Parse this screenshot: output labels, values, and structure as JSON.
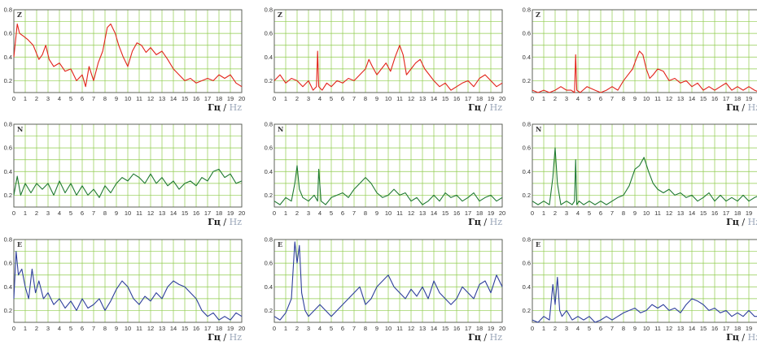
{
  "units": {
    "ru": "Гц",
    "separator": " / ",
    "en": "Hz"
  },
  "colors": {
    "grid": "#8fcc4d",
    "Z": "#e2231a",
    "N": "#1f7a31",
    "E": "#2e3f9c"
  },
  "chart_data": [
    {
      "type": "line",
      "component": "Z",
      "column": 1,
      "xlim": [
        0,
        20
      ],
      "ylim": [
        0.1,
        0.8
      ],
      "xticks": [
        "0",
        "1",
        "2",
        "3",
        "4",
        "5",
        "6",
        "7",
        "8",
        "9",
        "10",
        "11",
        "12",
        "13",
        "14",
        "15",
        "16",
        "17",
        "18",
        "19",
        "20"
      ],
      "yticks": [
        "0.2",
        "0.4",
        "0.6",
        "0.8"
      ],
      "x": [
        0,
        0.3,
        0.5,
        0.8,
        1.2,
        1.7,
        2.2,
        2.5,
        2.8,
        3.1,
        3.5,
        4,
        4.5,
        5,
        5.5,
        6,
        6.3,
        6.6,
        7,
        7.4,
        7.8,
        8,
        8.2,
        8.5,
        8.9,
        9.2,
        9.6,
        10,
        10.4,
        10.8,
        11.2,
        11.6,
        12,
        12.5,
        13,
        13.5,
        14,
        14.5,
        15,
        15.5,
        16,
        16.5,
        17,
        17.5,
        18,
        18.5,
        19,
        19.5,
        20
      ],
      "y": [
        0.4,
        0.68,
        0.6,
        0.58,
        0.55,
        0.5,
        0.38,
        0.42,
        0.5,
        0.38,
        0.32,
        0.35,
        0.28,
        0.3,
        0.2,
        0.25,
        0.15,
        0.32,
        0.2,
        0.35,
        0.45,
        0.55,
        0.65,
        0.68,
        0.6,
        0.5,
        0.4,
        0.32,
        0.45,
        0.52,
        0.5,
        0.44,
        0.48,
        0.42,
        0.45,
        0.38,
        0.3,
        0.25,
        0.2,
        0.22,
        0.18,
        0.2,
        0.22,
        0.2,
        0.25,
        0.22,
        0.25,
        0.18,
        0.15
      ]
    },
    {
      "type": "line",
      "component": "Z",
      "column": 2,
      "xlim": [
        0,
        20
      ],
      "ylim": [
        0.1,
        0.8
      ],
      "xticks": [
        "0",
        "1",
        "2",
        "3",
        "4",
        "5",
        "6",
        "7",
        "8",
        "9",
        "10",
        "11",
        "12",
        "13",
        "14",
        "15",
        "16",
        "17",
        "18",
        "19",
        "20"
      ],
      "yticks": [
        "0.2",
        "0.4",
        "0.6",
        "0.8"
      ],
      "x": [
        0,
        0.5,
        1,
        1.5,
        2,
        2.5,
        3,
        3.4,
        3.7,
        3.8,
        3.9,
        4.2,
        4.6,
        5,
        5.5,
        6,
        6.5,
        7,
        7.5,
        8,
        8.3,
        8.6,
        9,
        9.4,
        9.8,
        10.2,
        10.6,
        11,
        11.3,
        11.6,
        12,
        12.4,
        12.8,
        13.2,
        13.6,
        14,
        14.5,
        15,
        15.5,
        16,
        16.5,
        17,
        17.5,
        18,
        18.5,
        19,
        19.5,
        20
      ],
      "y": [
        0.2,
        0.25,
        0.18,
        0.22,
        0.2,
        0.15,
        0.2,
        0.12,
        0.15,
        0.45,
        0.15,
        0.12,
        0.18,
        0.15,
        0.2,
        0.18,
        0.22,
        0.2,
        0.25,
        0.3,
        0.38,
        0.32,
        0.25,
        0.3,
        0.35,
        0.28,
        0.4,
        0.5,
        0.42,
        0.25,
        0.3,
        0.35,
        0.38,
        0.3,
        0.25,
        0.2,
        0.15,
        0.18,
        0.12,
        0.15,
        0.18,
        0.2,
        0.15,
        0.22,
        0.25,
        0.2,
        0.15,
        0.18
      ]
    },
    {
      "type": "line",
      "component": "Z",
      "column": 3,
      "xlim": [
        0,
        20
      ],
      "ylim": [
        0.1,
        0.8
      ],
      "xticks": [
        "0",
        "1",
        "2",
        "3",
        "4",
        "5",
        "6",
        "7",
        "8",
        "9",
        "10",
        "11",
        "12",
        "13",
        "14",
        "15",
        "16",
        "17",
        "18",
        "19",
        "20"
      ],
      "yticks": [
        "0.2",
        "0.4",
        "0.6",
        "0.8"
      ],
      "x": [
        0,
        0.5,
        1,
        1.5,
        2,
        2.5,
        3,
        3.4,
        3.7,
        3.8,
        3.9,
        4.2,
        4.8,
        5.5,
        6,
        6.5,
        7,
        7.5,
        8,
        8.4,
        8.8,
        9.1,
        9.4,
        9.7,
        10,
        10.3,
        10.6,
        11,
        11.5,
        12,
        12.5,
        13,
        13.5,
        14,
        14.5,
        15,
        15.5,
        16,
        16.5,
        17,
        17.5,
        18,
        18.5,
        19,
        19.5,
        20
      ],
      "y": [
        0.12,
        0.1,
        0.12,
        0.1,
        0.12,
        0.15,
        0.12,
        0.12,
        0.1,
        0.42,
        0.12,
        0.1,
        0.15,
        0.12,
        0.1,
        0.12,
        0.15,
        0.12,
        0.2,
        0.25,
        0.3,
        0.38,
        0.45,
        0.42,
        0.3,
        0.22,
        0.25,
        0.3,
        0.28,
        0.2,
        0.22,
        0.18,
        0.2,
        0.15,
        0.18,
        0.12,
        0.15,
        0.12,
        0.15,
        0.18,
        0.12,
        0.15,
        0.12,
        0.15,
        0.12,
        0.1
      ]
    },
    {
      "type": "line",
      "component": "N",
      "column": 1,
      "xlim": [
        0,
        20
      ],
      "ylim": [
        0.1,
        0.8
      ],
      "xticks": [
        "0",
        "1",
        "2",
        "3",
        "4",
        "5",
        "6",
        "7",
        "8",
        "9",
        "10",
        "11",
        "12",
        "13",
        "14",
        "15",
        "16",
        "17",
        "18",
        "19",
        "20"
      ],
      "yticks": [
        "0.2",
        "0.4",
        "0.6",
        "0.8"
      ],
      "x": [
        0,
        0.3,
        0.6,
        1,
        1.5,
        2,
        2.5,
        3,
        3.5,
        4,
        4.5,
        5,
        5.5,
        6,
        6.5,
        7,
        7.5,
        8,
        8.5,
        9,
        9.5,
        10,
        10.5,
        11,
        11.5,
        12,
        12.5,
        13,
        13.5,
        14,
        14.5,
        15,
        15.5,
        16,
        16.5,
        17,
        17.5,
        18,
        18.5,
        19,
        19.5,
        20
      ],
      "y": [
        0.2,
        0.36,
        0.2,
        0.3,
        0.22,
        0.3,
        0.25,
        0.3,
        0.2,
        0.32,
        0.22,
        0.3,
        0.2,
        0.28,
        0.2,
        0.25,
        0.18,
        0.28,
        0.22,
        0.3,
        0.35,
        0.32,
        0.38,
        0.35,
        0.3,
        0.38,
        0.3,
        0.35,
        0.28,
        0.32,
        0.25,
        0.3,
        0.32,
        0.28,
        0.35,
        0.32,
        0.4,
        0.42,
        0.35,
        0.38,
        0.3,
        0.32
      ]
    },
    {
      "type": "line",
      "component": "N",
      "column": 2,
      "xlim": [
        0,
        20
      ],
      "ylim": [
        0.1,
        0.8
      ],
      "xticks": [
        "0",
        "1",
        "2",
        "3",
        "4",
        "5",
        "6",
        "7",
        "8",
        "9",
        "10",
        "11",
        "12",
        "13",
        "14",
        "15",
        "16",
        "17",
        "18",
        "19",
        "20"
      ],
      "yticks": [
        "0.2",
        "0.4",
        "0.6",
        "0.8"
      ],
      "x": [
        0,
        0.5,
        1,
        1.5,
        1.8,
        2,
        2.2,
        2.5,
        3,
        3.5,
        3.8,
        3.9,
        4.1,
        4.5,
        5,
        5.5,
        6,
        6.5,
        7,
        7.5,
        8,
        8.5,
        9,
        9.5,
        10,
        10.5,
        11,
        11.5,
        12,
        12.5,
        13,
        13.5,
        14,
        14.5,
        15,
        15.5,
        16,
        16.5,
        17,
        17.5,
        18,
        18.5,
        19,
        19.5,
        20
      ],
      "y": [
        0.15,
        0.12,
        0.18,
        0.15,
        0.3,
        0.45,
        0.25,
        0.18,
        0.15,
        0.2,
        0.15,
        0.42,
        0.15,
        0.12,
        0.18,
        0.2,
        0.22,
        0.18,
        0.25,
        0.3,
        0.35,
        0.3,
        0.22,
        0.18,
        0.2,
        0.25,
        0.2,
        0.22,
        0.15,
        0.18,
        0.12,
        0.15,
        0.2,
        0.15,
        0.22,
        0.18,
        0.2,
        0.15,
        0.18,
        0.22,
        0.15,
        0.18,
        0.2,
        0.15,
        0.18
      ]
    },
    {
      "type": "line",
      "component": "N",
      "column": 3,
      "xlim": [
        0,
        20
      ],
      "ylim": [
        0.1,
        0.8
      ],
      "xticks": [
        "0",
        "1",
        "2",
        "3",
        "4",
        "5",
        "6",
        "7",
        "8",
        "9",
        "10",
        "11",
        "12",
        "13",
        "14",
        "15",
        "16",
        "17",
        "18",
        "19",
        "20"
      ],
      "yticks": [
        "0.2",
        "0.4",
        "0.6",
        "0.8"
      ],
      "x": [
        0,
        0.5,
        1,
        1.5,
        1.8,
        2,
        2.2,
        2.5,
        3,
        3.5,
        3.7,
        3.8,
        3.9,
        4.1,
        4.5,
        5,
        5.5,
        6,
        6.5,
        7,
        7.5,
        8,
        8.5,
        9,
        9.4,
        9.8,
        10.2,
        10.6,
        11,
        11.5,
        12,
        12.5,
        13,
        13.5,
        14,
        14.5,
        15,
        15.5,
        16,
        16.5,
        17,
        17.5,
        18,
        18.5,
        19,
        19.5,
        20
      ],
      "y": [
        0.15,
        0.12,
        0.15,
        0.12,
        0.35,
        0.6,
        0.3,
        0.12,
        0.15,
        0.12,
        0.15,
        0.5,
        0.12,
        0.15,
        0.12,
        0.15,
        0.12,
        0.15,
        0.12,
        0.15,
        0.18,
        0.2,
        0.28,
        0.42,
        0.45,
        0.52,
        0.4,
        0.3,
        0.25,
        0.22,
        0.25,
        0.2,
        0.22,
        0.18,
        0.2,
        0.15,
        0.18,
        0.22,
        0.15,
        0.2,
        0.15,
        0.18,
        0.15,
        0.2,
        0.15,
        0.18,
        0.2
      ]
    },
    {
      "type": "line",
      "component": "E",
      "column": 1,
      "xlim": [
        0,
        20
      ],
      "ylim": [
        0.1,
        0.8
      ],
      "xticks": [
        "0",
        "1",
        "2",
        "3",
        "4",
        "5",
        "6",
        "7",
        "8",
        "9",
        "10",
        "11",
        "12",
        "13",
        "14",
        "15",
        "16",
        "17",
        "18",
        "19",
        "20"
      ],
      "yticks": [
        "0.2",
        "0.4",
        "0.6",
        "0.8"
      ],
      "x": [
        0,
        0.2,
        0.4,
        0.7,
        1,
        1.3,
        1.6,
        1.9,
        2.2,
        2.6,
        3,
        3.5,
        4,
        4.5,
        5,
        5.5,
        6,
        6.5,
        7,
        7.5,
        8,
        8.5,
        9,
        9.5,
        10,
        10.5,
        11,
        11.5,
        12,
        12.5,
        13,
        13.5,
        14,
        14.5,
        15,
        15.5,
        16,
        16.5,
        17,
        17.5,
        18,
        18.5,
        19,
        19.5,
        20
      ],
      "y": [
        0.3,
        0.7,
        0.5,
        0.55,
        0.4,
        0.3,
        0.55,
        0.35,
        0.45,
        0.3,
        0.35,
        0.25,
        0.3,
        0.22,
        0.28,
        0.2,
        0.3,
        0.22,
        0.25,
        0.3,
        0.2,
        0.28,
        0.38,
        0.45,
        0.4,
        0.3,
        0.25,
        0.32,
        0.28,
        0.35,
        0.3,
        0.4,
        0.45,
        0.42,
        0.4,
        0.35,
        0.3,
        0.2,
        0.15,
        0.18,
        0.12,
        0.15,
        0.12,
        0.18,
        0.15
      ]
    },
    {
      "type": "line",
      "component": "E",
      "column": 2,
      "xlim": [
        0,
        20
      ],
      "ylim": [
        0.1,
        0.8
      ],
      "xticks": [
        "0",
        "1",
        "2",
        "3",
        "4",
        "5",
        "6",
        "7",
        "8",
        "9",
        "10",
        "11",
        "12",
        "13",
        "14",
        "15",
        "16",
        "17",
        "18",
        "19",
        "20"
      ],
      "yticks": [
        "0.2",
        "0.4",
        "0.6",
        "0.8"
      ],
      "x": [
        0,
        0.5,
        1,
        1.5,
        1.8,
        2,
        2.2,
        2.4,
        2.7,
        3,
        3.5,
        4,
        4.5,
        5,
        5.5,
        6,
        6.5,
        7,
        7.5,
        8,
        8.5,
        9,
        9.5,
        10,
        10.5,
        11,
        11.5,
        12,
        12.5,
        13,
        13.5,
        14,
        14.5,
        15,
        15.5,
        16,
        16.5,
        17,
        17.5,
        18,
        18.5,
        19,
        19.5,
        20
      ],
      "y": [
        0.15,
        0.12,
        0.18,
        0.3,
        0.78,
        0.6,
        0.75,
        0.35,
        0.2,
        0.15,
        0.2,
        0.25,
        0.2,
        0.15,
        0.2,
        0.25,
        0.3,
        0.35,
        0.4,
        0.25,
        0.3,
        0.4,
        0.45,
        0.5,
        0.4,
        0.35,
        0.3,
        0.38,
        0.32,
        0.4,
        0.3,
        0.45,
        0.35,
        0.3,
        0.25,
        0.3,
        0.4,
        0.35,
        0.3,
        0.42,
        0.45,
        0.35,
        0.5,
        0.4
      ]
    },
    {
      "type": "line",
      "component": "E",
      "column": 3,
      "xlim": [
        0,
        20
      ],
      "ylim": [
        0.1,
        0.8
      ],
      "xticks": [
        "0",
        "1",
        "2",
        "3",
        "4",
        "5",
        "6",
        "7",
        "8",
        "9",
        "10",
        "11",
        "12",
        "13",
        "14",
        "15",
        "16",
        "17",
        "18",
        "19",
        "20"
      ],
      "yticks": [
        "0.2",
        "0.4",
        "0.6",
        "0.8"
      ],
      "x": [
        0,
        0.5,
        1,
        1.5,
        1.8,
        2,
        2.2,
        2.4,
        2.6,
        3,
        3.5,
        4,
        4.5,
        5,
        5.5,
        6,
        6.5,
        7,
        7.5,
        8,
        8.5,
        9,
        9.5,
        10,
        10.5,
        11,
        11.5,
        12,
        12.5,
        13,
        13.5,
        14,
        14.5,
        15,
        15.5,
        16,
        16.5,
        17,
        17.5,
        18,
        18.5,
        19,
        19.5,
        20
      ],
      "y": [
        0.12,
        0.1,
        0.15,
        0.12,
        0.42,
        0.25,
        0.48,
        0.2,
        0.15,
        0.2,
        0.12,
        0.15,
        0.12,
        0.15,
        0.1,
        0.12,
        0.15,
        0.12,
        0.15,
        0.18,
        0.2,
        0.22,
        0.18,
        0.2,
        0.25,
        0.22,
        0.25,
        0.2,
        0.22,
        0.18,
        0.25,
        0.3,
        0.28,
        0.25,
        0.2,
        0.22,
        0.18,
        0.2,
        0.15,
        0.18,
        0.15,
        0.2,
        0.15,
        0.15
      ]
    }
  ]
}
